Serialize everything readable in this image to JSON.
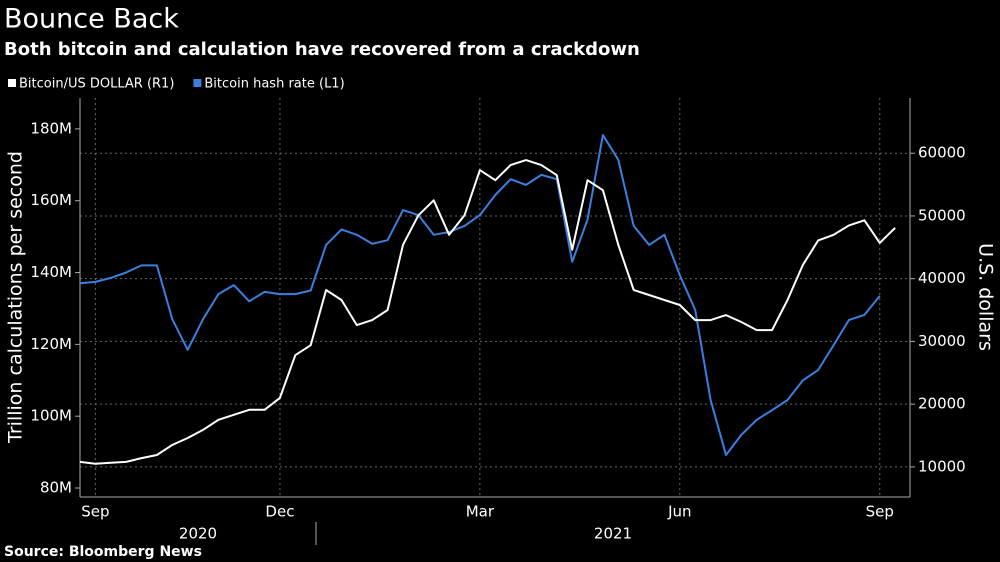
{
  "chart_data": {
    "type": "line",
    "title": "Bounce Back",
    "subtitle": "Both bitcoin and calculation have recovered from a crackdown",
    "source": "Source: Bloomberg News",
    "y_label": "Trillion calculations per second",
    "y2_label": "U.S. dollars",
    "categories": [
      null,
      "Sep",
      null,
      null,
      null,
      null,
      null,
      null,
      null,
      null,
      null,
      null,
      null,
      "Dec",
      null,
      null,
      null,
      null,
      null,
      null,
      null,
      null,
      null,
      null,
      null,
      null,
      "Mar",
      null,
      null,
      null,
      null,
      null,
      null,
      null,
      null,
      null,
      null,
      null,
      null,
      "Jun",
      null,
      null,
      null,
      null,
      null,
      null,
      null,
      null,
      null,
      null,
      null,
      null,
      "Sep",
      null
    ],
    "x_groups": [
      "2020",
      "2021"
    ],
    "series": [
      {
        "name": "Bitcoin/US DOLLAR (R1)",
        "color": "#ffffff",
        "axis": "y2",
        "values": [
          10800,
          10500,
          10650,
          10800,
          11400,
          11900,
          13500,
          14600,
          15900,
          17500,
          18300,
          19100,
          19100,
          21000,
          27800,
          29400,
          38200,
          36600,
          32600,
          33400,
          35000,
          45400,
          50100,
          52500,
          47000,
          50100,
          57300,
          55700,
          58100,
          58900,
          58100,
          56500,
          44600,
          55700,
          54100,
          45400,
          38200,
          37400,
          36600,
          35800,
          33400,
          33400,
          34200,
          33100,
          31800,
          31800,
          36600,
          42200,
          46100,
          47000,
          48500,
          49300,
          45700,
          48100
        ]
      },
      {
        "name": "Bitcoin hash rate (L1)",
        "color": "#3b7fe0",
        "axis": "y",
        "values": [
          137,
          137.4,
          138.5,
          140,
          142,
          142,
          127,
          118.5,
          127,
          134,
          136.5,
          132,
          134.6,
          134,
          134,
          135,
          147.7,
          152,
          150.5,
          148,
          149,
          157.4,
          156,
          150.5,
          151.3,
          153,
          156,
          161.6,
          166,
          164.4,
          167.2,
          166,
          143,
          154.7,
          178.3,
          171.4,
          153,
          147.7,
          150.5,
          139.3,
          129.6,
          104.5,
          89.2,
          94.8,
          99,
          101.7,
          104.5,
          110,
          112.9,
          119.8,
          126.8,
          128.2,
          133.5,
          null
        ]
      }
    ],
    "ylim": [
      77.5,
      188.6
    ],
    "yticks": [
      {
        "value": 80,
        "label": "80M"
      },
      {
        "value": 100,
        "label": "100M"
      },
      {
        "value": 120,
        "label": "120M"
      },
      {
        "value": 140,
        "label": "140M"
      },
      {
        "value": 160,
        "label": "160M"
      },
      {
        "value": 180,
        "label": "180M"
      }
    ],
    "y2lim": [
      5200,
      68800
    ],
    "y2ticks": [
      10000,
      20000,
      30000,
      40000,
      50000,
      60000
    ],
    "grid": true
  }
}
